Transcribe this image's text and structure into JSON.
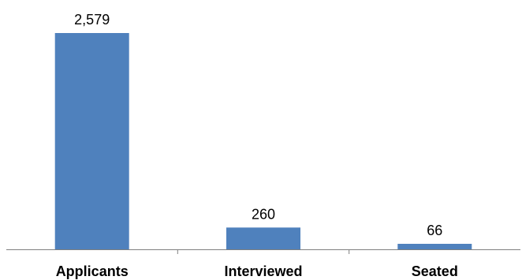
{
  "chart_data": {
    "type": "bar",
    "categories": [
      "Applicants",
      "Interviewed",
      "Seated"
    ],
    "values": [
      2579,
      260,
      66
    ],
    "value_labels": [
      "2,579",
      "260",
      "66"
    ],
    "title": "",
    "xlabel": "",
    "ylabel": "",
    "ylim": [
      0,
      2579
    ],
    "grid": false,
    "legend": "none",
    "bar_color": "#4f81bd",
    "axis_color": "#7f7f7f"
  }
}
